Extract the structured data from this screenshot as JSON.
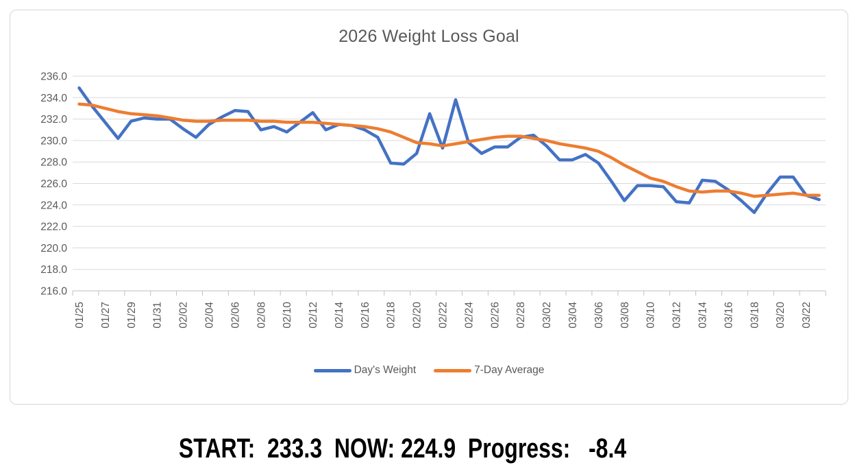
{
  "title": "2026 Weight Loss Goal",
  "status_line": "START:  233.3  NOW: 224.9  Progress:   -8.4",
  "summary": {
    "start": 233.3,
    "now": 224.9,
    "progress": -8.4
  },
  "legend": [
    {
      "label": "Day's Weight",
      "color": "#4472C4"
    },
    {
      "label": "7-Day Average",
      "color": "#ED7D31"
    }
  ],
  "colors": {
    "series_blue": "#4472C4",
    "series_orange": "#ED7D31",
    "gridline": "#D9D9D9",
    "axis": "#BFBFBF",
    "text_gray": "#595959",
    "status_text": "#000000"
  },
  "chart_data": {
    "type": "line",
    "title": "2026 Weight Loss Goal",
    "xlabel": "",
    "ylabel": "",
    "grid": "horizontal",
    "legend_position": "bottom",
    "ylim": [
      216,
      236
    ],
    "ytick_step": 2,
    "ytick_labels": [
      "236.0",
      "234.0",
      "232.0",
      "230.0",
      "228.0",
      "226.0",
      "224.0",
      "222.0",
      "220.0",
      "218.0",
      "216.0"
    ],
    "x": [
      "01/25",
      "01/26",
      "01/27",
      "01/28",
      "01/29",
      "01/30",
      "01/31",
      "02/01",
      "02/02",
      "02/03",
      "02/04",
      "02/05",
      "02/06",
      "02/07",
      "02/08",
      "02/09",
      "02/10",
      "02/11",
      "02/12",
      "02/13",
      "02/14",
      "02/15",
      "02/16",
      "02/17",
      "02/18",
      "02/19",
      "02/20",
      "02/21",
      "02/22",
      "02/23",
      "02/24",
      "02/25",
      "02/26",
      "02/27",
      "02/28",
      "03/01",
      "03/02",
      "03/03",
      "03/04",
      "03/05",
      "03/06",
      "03/07",
      "03/08",
      "03/09",
      "03/10",
      "03/11",
      "03/12",
      "03/13",
      "03/14",
      "03/15",
      "03/16",
      "03/17",
      "03/18",
      "03/19",
      "03/20",
      "03/21",
      "03/22",
      "03/23"
    ],
    "x_tick_labels": [
      "01/25",
      "01/27",
      "01/29",
      "01/31",
      "02/02",
      "02/04",
      "02/06",
      "02/08",
      "02/10",
      "02/12",
      "02/14",
      "02/16",
      "02/18",
      "02/20",
      "02/22",
      "02/24",
      "02/26",
      "02/28",
      "03/02",
      "03/04",
      "03/06",
      "03/08",
      "03/10",
      "03/12",
      "03/14",
      "03/16",
      "03/18",
      "03/20",
      "03/22"
    ],
    "x_label_every": 2,
    "series": [
      {
        "name": "Day's Weight",
        "color": "#4472C4",
        "values": [
          234.9,
          233.2,
          231.7,
          230.2,
          231.8,
          232.1,
          232.0,
          232.0,
          231.1,
          230.3,
          231.5,
          232.2,
          232.8,
          232.7,
          231.0,
          231.3,
          230.8,
          231.7,
          232.6,
          231.0,
          231.5,
          231.4,
          231.0,
          230.3,
          227.9,
          227.8,
          228.8,
          232.5,
          229.3,
          233.8,
          229.8,
          228.8,
          229.4,
          229.4,
          230.3,
          230.5,
          229.5,
          228.2,
          228.2,
          228.7,
          227.9,
          226.2,
          224.4,
          225.8,
          225.8,
          225.7,
          224.3,
          224.2,
          226.3,
          226.2,
          225.4,
          224.4,
          223.3,
          225.1,
          226.6,
          226.6,
          224.9,
          224.5
        ]
      },
      {
        "name": "7-Day Average",
        "color": "#ED7D31",
        "values": [
          233.4,
          233.3,
          233.0,
          232.7,
          232.5,
          232.4,
          232.3,
          232.1,
          231.9,
          231.8,
          231.8,
          231.9,
          231.9,
          231.9,
          231.8,
          231.8,
          231.7,
          231.7,
          231.7,
          231.6,
          231.5,
          231.4,
          231.3,
          231.1,
          230.8,
          230.3,
          229.8,
          229.7,
          229.5,
          229.7,
          229.9,
          230.1,
          230.3,
          230.4,
          230.4,
          230.2,
          230.0,
          229.7,
          229.5,
          229.3,
          229.0,
          228.4,
          227.7,
          227.1,
          226.5,
          226.2,
          225.7,
          225.3,
          225.2,
          225.3,
          225.3,
          225.1,
          224.8,
          224.9,
          225.0,
          225.1,
          224.9,
          224.9
        ]
      }
    ]
  }
}
